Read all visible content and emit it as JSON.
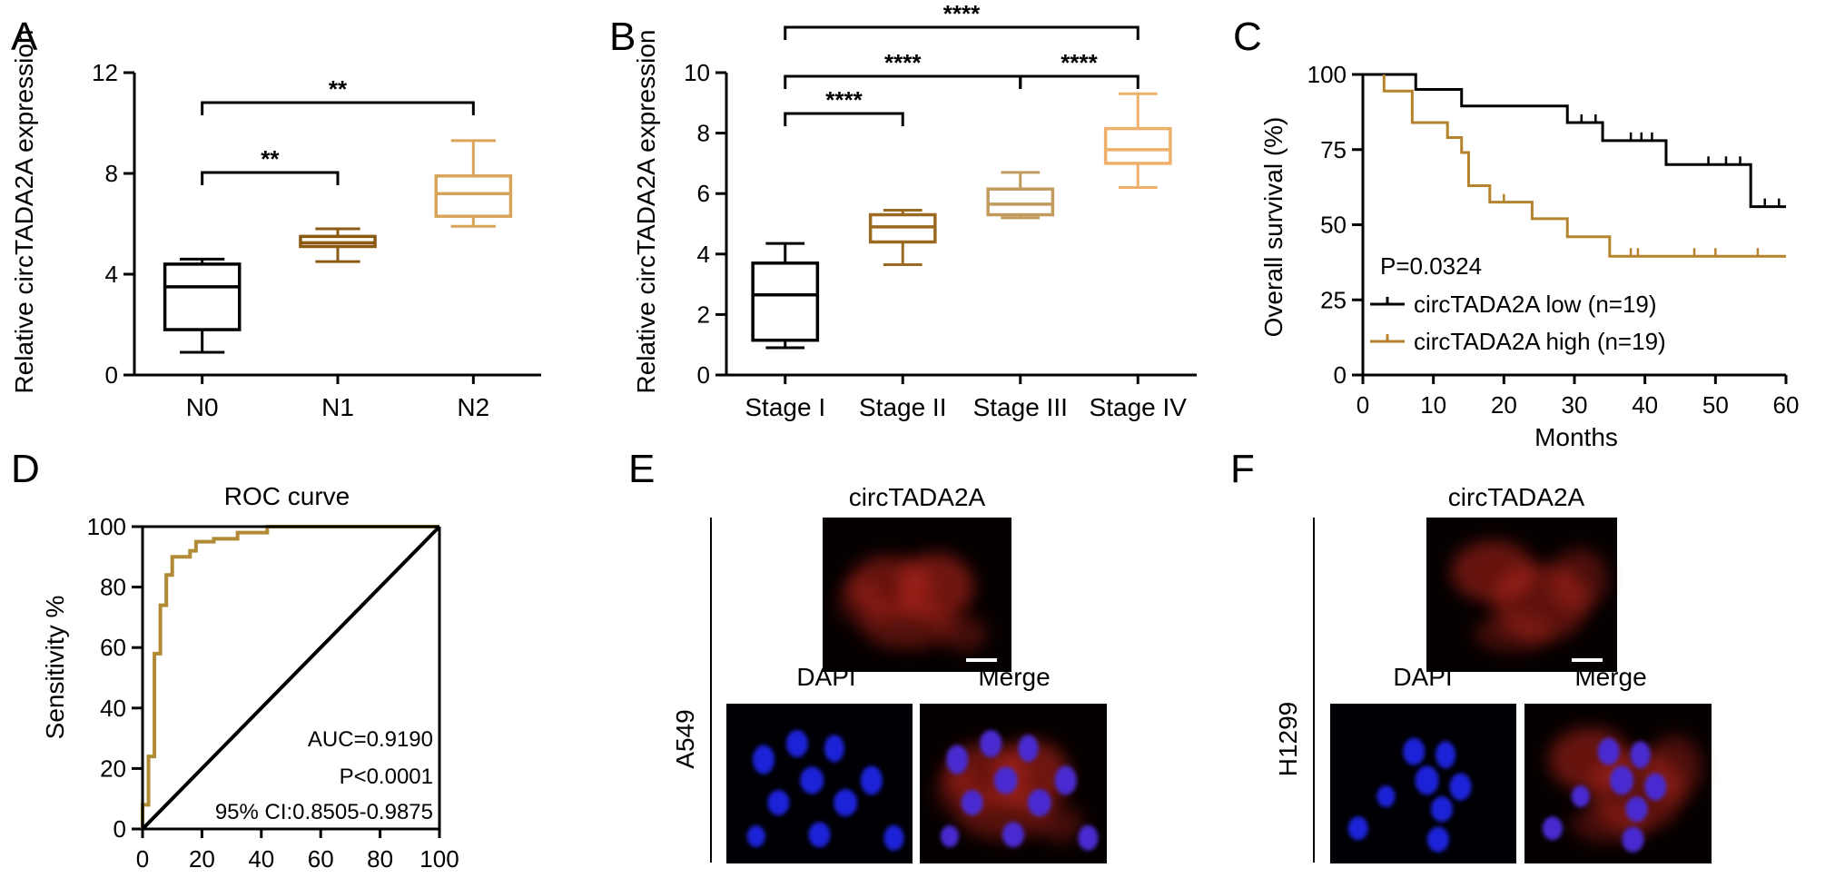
{
  "colors": {
    "black": "#000000",
    "n1": "#8a5a12",
    "n2": "#d9a45a",
    "s2": "#9a6a22",
    "s3": "#c19a5e",
    "s4": "#eeb06a",
    "kmHigh": "#b5822d",
    "roc": "#b08a34",
    "red": "#b8281e",
    "blue": "#1a24d8"
  },
  "panels": {
    "A": "A",
    "B": "B",
    "C": "C",
    "D": "D",
    "E": "E",
    "F": "F"
  },
  "chart_data": [
    {
      "panel": "A",
      "type": "box",
      "categories": [
        "N0",
        "N1",
        "N2"
      ],
      "ylabel": "Relative circTADA2A expression",
      "ylim": [
        0,
        12
      ],
      "yticks": [
        0,
        4,
        8,
        12
      ],
      "series": [
        {
          "category": "N0",
          "min": 0.9,
          "q1": 1.8,
          "median": 3.5,
          "q3": 4.4,
          "max": 4.6
        },
        {
          "category": "N1",
          "min": 4.5,
          "q1": 5.1,
          "median": 5.25,
          "q3": 5.5,
          "max": 5.8
        },
        {
          "category": "N2",
          "min": 5.9,
          "q1": 6.3,
          "median": 7.2,
          "q3": 7.9,
          "max": 9.3
        }
      ],
      "significance": [
        {
          "from": "N0",
          "to": "N1",
          "label": "**"
        },
        {
          "from": "N0",
          "to": "N2",
          "label": "**"
        }
      ]
    },
    {
      "panel": "B",
      "type": "box",
      "categories": [
        "Stage I",
        "Stage II",
        "Stage III",
        "Stage IV"
      ],
      "ylabel": "Relative circTADA2A expression",
      "ylim": [
        0,
        10
      ],
      "yticks": [
        0,
        2,
        4,
        6,
        8,
        10
      ],
      "series": [
        {
          "category": "Stage I",
          "min": 0.9,
          "q1": 1.15,
          "median": 2.65,
          "q3": 3.7,
          "max": 4.35
        },
        {
          "category": "Stage II",
          "min": 3.65,
          "q1": 4.4,
          "median": 4.9,
          "q3": 5.3,
          "max": 5.45
        },
        {
          "category": "Stage III",
          "min": 5.2,
          "q1": 5.3,
          "median": 5.65,
          "q3": 6.15,
          "max": 6.7
        },
        {
          "category": "Stage IV",
          "min": 6.2,
          "q1": 7.0,
          "median": 7.45,
          "q3": 8.15,
          "max": 9.3
        }
      ],
      "significance": [
        {
          "from": "Stage I",
          "to": "Stage II",
          "label": "****"
        },
        {
          "from": "Stage I",
          "to": "Stage III",
          "label": "****"
        },
        {
          "from": "Stage III",
          "to": "Stage IV",
          "label": "****"
        },
        {
          "from": "Stage I",
          "to": "Stage IV",
          "label": "****"
        }
      ]
    },
    {
      "panel": "C",
      "type": "line",
      "xlabel": "Months",
      "ylabel": "Overall survival (%)",
      "xlim": [
        0,
        60
      ],
      "ylim": [
        0,
        100
      ],
      "xticks": [
        0,
        10,
        20,
        30,
        40,
        50,
        60
      ],
      "yticks": [
        0,
        25,
        50,
        75,
        100
      ],
      "annotation": "P=0.0324",
      "series": [
        {
          "name": "circTADA2A low (n=19)",
          "steps": [
            [
              0,
              100
            ],
            [
              7.5,
              100
            ],
            [
              7.5,
              95
            ],
            [
              14,
              95
            ],
            [
              14,
              89.5
            ],
            [
              29,
              89.5
            ],
            [
              29,
              84
            ],
            [
              34,
              84
            ],
            [
              34,
              78
            ],
            [
              43,
              78
            ],
            [
              43,
              70
            ],
            [
              55,
              70
            ],
            [
              55,
              56
            ],
            [
              60,
              56
            ]
          ],
          "censors": [
            [
              31,
              84
            ],
            [
              33,
              84
            ],
            [
              38,
              78
            ],
            [
              39.5,
              78
            ],
            [
              41,
              78
            ],
            [
              49,
              70
            ],
            [
              51.5,
              70
            ],
            [
              53.5,
              70
            ],
            [
              57,
              56
            ],
            [
              59,
              56
            ]
          ]
        },
        {
          "name": "circTADA2A high (n=19)",
          "steps": [
            [
              3,
              100
            ],
            [
              3,
              94.5
            ],
            [
              7,
              94.5
            ],
            [
              7,
              84
            ],
            [
              12,
              84
            ],
            [
              12,
              79
            ],
            [
              14,
              79
            ],
            [
              14,
              74
            ],
            [
              15,
              74
            ],
            [
              15,
              63
            ],
            [
              18,
              63
            ],
            [
              18,
              57.5
            ],
            [
              24,
              57.5
            ],
            [
              24,
              52
            ],
            [
              29,
              52
            ],
            [
              29,
              46
            ],
            [
              35,
              46
            ],
            [
              35,
              39.5
            ],
            [
              60,
              39.5
            ]
          ],
          "censors": [
            [
              20,
              57.5
            ],
            [
              38,
              39.5
            ],
            [
              39,
              39.5
            ],
            [
              47,
              39.5
            ],
            [
              50,
              39.5
            ],
            [
              56,
              39.5
            ]
          ]
        }
      ]
    },
    {
      "panel": "D",
      "type": "line",
      "title": "ROC curve",
      "ylabel": "Sensitivity %",
      "xlim": [
        0,
        100
      ],
      "ylim": [
        0,
        100
      ],
      "xticks": [
        0,
        20,
        40,
        60,
        80,
        100
      ],
      "yticks": [
        0,
        20,
        40,
        60,
        80,
        100
      ],
      "annotations": [
        "AUC=0.9190",
        "P<0.0001",
        "95% CI:0.8505-0.9875"
      ],
      "series": [
        {
          "name": "ROC",
          "points": [
            [
              0,
              0
            ],
            [
              0,
              8
            ],
            [
              2,
              8
            ],
            [
              2,
              24
            ],
            [
              4,
              24
            ],
            [
              4,
              58
            ],
            [
              6,
              58
            ],
            [
              6,
              74
            ],
            [
              8,
              74
            ],
            [
              8,
              84
            ],
            [
              10,
              84
            ],
            [
              10,
              90
            ],
            [
              16,
              90
            ],
            [
              16,
              92
            ],
            [
              18,
              92
            ],
            [
              18,
              95
            ],
            [
              24,
              95
            ],
            [
              24,
              96
            ],
            [
              32,
              96
            ],
            [
              32,
              98
            ],
            [
              42,
              98
            ],
            [
              42,
              100
            ],
            [
              100,
              100
            ]
          ]
        },
        {
          "name": "reference",
          "points": [
            [
              0,
              0
            ],
            [
              100,
              100
            ]
          ]
        }
      ]
    }
  ],
  "microscopy": {
    "E": {
      "cell_line": "A549",
      "top_label": "circTADA2A",
      "dapi_label": "DAPI",
      "merge_label": "Merge"
    },
    "F": {
      "cell_line": "H1299",
      "top_label": "circTADA2A",
      "dapi_label": "DAPI",
      "merge_label": "Merge"
    }
  }
}
